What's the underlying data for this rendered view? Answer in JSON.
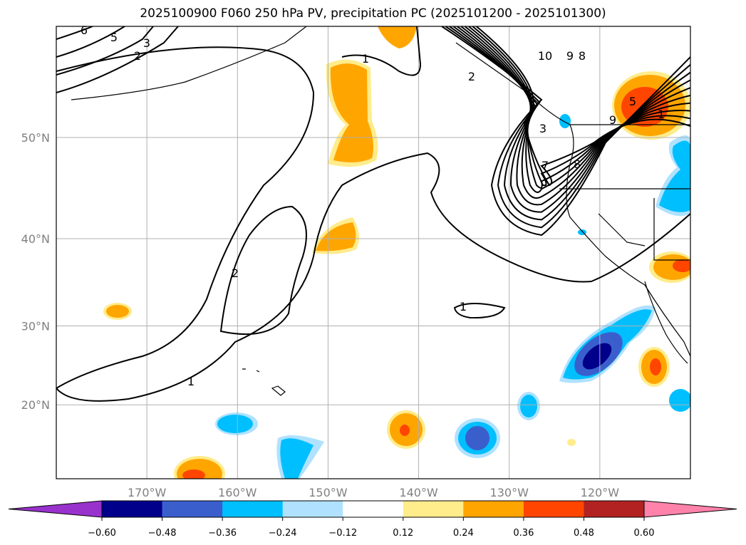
{
  "title": "2025100900 F060 250 hPa PV, precipitation PC (2025101200 - 2025101300)",
  "map": {
    "lon_range": [
      -180,
      -110
    ],
    "lat_range": [
      10,
      59
    ],
    "lon_ticks": [
      {
        "v": -170,
        "label": "170°W"
      },
      {
        "v": -160,
        "label": "160°W"
      },
      {
        "v": -150,
        "label": "150°W"
      },
      {
        "v": -140,
        "label": "140°W"
      },
      {
        "v": -130,
        "label": "130°W"
      },
      {
        "v": -120,
        "label": "120°W"
      }
    ],
    "lat_ticks": [
      {
        "v": 50,
        "label": "50°N"
      },
      {
        "v": 40,
        "label": "40°N"
      },
      {
        "v": 30,
        "label": "30°N"
      },
      {
        "v": 20,
        "label": "20°N"
      }
    ],
    "grid_color": "#b0b0b0",
    "contour_labels": [
      "6",
      "5",
      "3",
      "2",
      "1",
      "10",
      "9",
      "8",
      "2",
      "5",
      "1",
      "9",
      "3",
      "7",
      "8",
      "2",
      "1",
      "1"
    ]
  },
  "colorbar": {
    "colors": [
      "#9932cc",
      "#00008b",
      "#3a5fcd",
      "#00bfff",
      "#b0e2ff",
      "#ffffff",
      "#ffec8b",
      "#ffa500",
      "#ff4500",
      "#b22222",
      "#ff82ab"
    ],
    "tick_labels": [
      "−0.60",
      "−0.48",
      "−0.36",
      "−0.24",
      "−0.12",
      "0.12",
      "0.24",
      "0.36",
      "0.48",
      "0.60"
    ]
  }
}
